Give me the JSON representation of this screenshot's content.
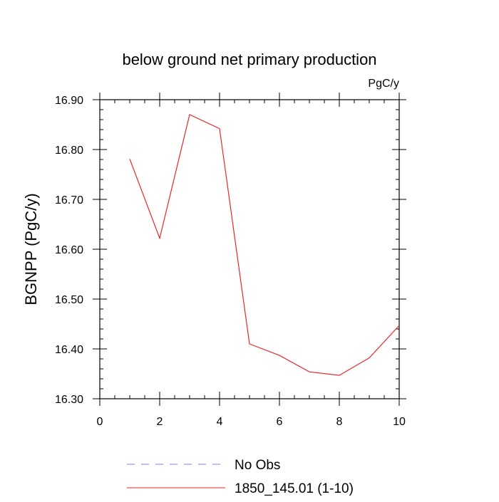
{
  "chart_data": {
    "type": "line",
    "title": "below ground net primary production",
    "units_label": "PgC/y",
    "xlabel": "",
    "ylabel": "BGNPP  (PgC/y)",
    "xlim": [
      0,
      10
    ],
    "ylim": [
      16.3,
      16.9
    ],
    "x_ticks": [
      0,
      2,
      4,
      6,
      8,
      10
    ],
    "x_tick_labels": [
      "0",
      "2",
      "4",
      "6",
      "8",
      "10"
    ],
    "y_ticks": [
      16.3,
      16.4,
      16.5,
      16.6,
      16.7,
      16.8,
      16.9
    ],
    "y_tick_labels": [
      "16.30",
      "16.40",
      "16.50",
      "16.60",
      "16.70",
      "16.80",
      "16.90"
    ],
    "grid": false,
    "legend_position": "bottom",
    "series": [
      {
        "name": "1850_145.01 (1-10)",
        "color": "#e8262a",
        "dash": "solid",
        "x": [
          1,
          2,
          3,
          4,
          5,
          6,
          7,
          8,
          9,
          10
        ],
        "values": [
          16.781,
          16.622,
          16.87,
          16.842,
          16.41,
          16.387,
          16.354,
          16.347,
          16.382,
          16.447
        ]
      }
    ],
    "legend": [
      {
        "label": "No Obs",
        "color": "#8080ff",
        "dash": "dashed"
      },
      {
        "label": "1850_145.01 (1-10)",
        "color": "#e8262a",
        "dash": "solid"
      }
    ]
  }
}
